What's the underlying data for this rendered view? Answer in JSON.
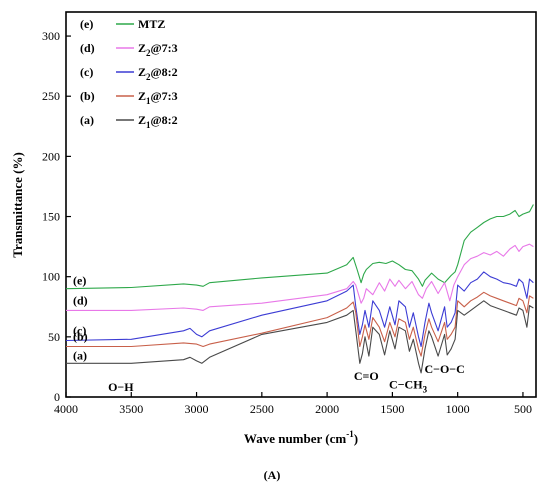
{
  "chart_data": {
    "type": "line",
    "xlabel": "Wave number (cm",
    "xlabel_sup": "-1",
    "xlabel_close": ")",
    "ylabel": "Transmittance (%)",
    "xlim": [
      4000,
      400
    ],
    "ylim": [
      0,
      320
    ],
    "x_ticks": [
      4000,
      3500,
      3000,
      2500,
      2000,
      1500,
      1000,
      500
    ],
    "y_ticks": [
      0,
      50,
      100,
      150,
      200,
      250,
      300
    ],
    "legend_placement": "top-left",
    "panel_label": "(A)",
    "series": [
      {
        "name": "MTZ",
        "tag": "(e)",
        "curve_label": "(e)",
        "color": "#2ea84a",
        "x": [
          4000,
          3500,
          3100,
          3000,
          2950,
          2900,
          2500,
          2000,
          1850,
          1800,
          1770,
          1740,
          1720,
          1700,
          1650,
          1600,
          1550,
          1500,
          1450,
          1400,
          1350,
          1300,
          1270,
          1250,
          1200,
          1150,
          1100,
          1050,
          1020,
          1000,
          950,
          900,
          850,
          800,
          750,
          700,
          650,
          600,
          560,
          530,
          500,
          450,
          420
        ],
        "y": [
          90,
          91,
          94,
          93,
          92,
          95,
          99,
          103,
          110,
          116,
          106,
          95,
          102,
          106,
          111,
          112,
          111,
          113,
          110,
          106,
          105,
          98,
          92,
          97,
          103,
          98,
          95,
          101,
          104,
          110,
          130,
          137,
          141,
          145,
          148,
          150,
          150,
          152,
          155,
          150,
          152,
          154,
          160
        ]
      },
      {
        "name": "Z",
        "sub": "2",
        "suffix": "@7:3",
        "tag": "(d)",
        "curve_label": "(d)",
        "color": "#e878e8",
        "x": [
          4000,
          3500,
          3100,
          3000,
          2950,
          2900,
          2500,
          2000,
          1850,
          1800,
          1780,
          1740,
          1720,
          1700,
          1650,
          1600,
          1560,
          1520,
          1480,
          1450,
          1400,
          1350,
          1300,
          1270,
          1240,
          1200,
          1150,
          1100,
          1060,
          1030,
          1000,
          950,
          900,
          850,
          800,
          750,
          700,
          650,
          600,
          560,
          530,
          500,
          450,
          420
        ],
        "y": [
          72,
          72,
          74,
          73,
          72,
          75,
          78,
          85,
          90,
          96,
          93,
          78,
          82,
          90,
          85,
          95,
          88,
          98,
          92,
          97,
          90,
          96,
          85,
          82,
          90,
          96,
          86,
          95,
          80,
          93,
          100,
          110,
          115,
          117,
          120,
          118,
          121,
          117,
          123,
          126,
          121,
          125,
          127,
          125
        ]
      },
      {
        "name": "Z",
        "sub": "2",
        "suffix": "@8:2",
        "tag": "(c)",
        "curve_label": "(c)",
        "color": "#3c3cd4",
        "x": [
          4000,
          3500,
          3100,
          3050,
          3000,
          2960,
          2900,
          2500,
          2000,
          1850,
          1800,
          1780,
          1750,
          1730,
          1710,
          1680,
          1650,
          1600,
          1560,
          1520,
          1480,
          1450,
          1400,
          1370,
          1340,
          1300,
          1280,
          1250,
          1220,
          1200,
          1150,
          1100,
          1080,
          1050,
          1020,
          1000,
          950,
          900,
          850,
          800,
          750,
          700,
          650,
          600,
          550,
          530,
          500,
          470,
          450,
          420
        ],
        "y": [
          47,
          48,
          55,
          57,
          52,
          50,
          55,
          68,
          80,
          88,
          93,
          75,
          52,
          60,
          72,
          58,
          80,
          72,
          58,
          75,
          60,
          80,
          75,
          58,
          70,
          50,
          42,
          62,
          78,
          70,
          55,
          75,
          58,
          62,
          70,
          93,
          88,
          95,
          98,
          104,
          100,
          98,
          95,
          94,
          92,
          98,
          95,
          82,
          98,
          95
        ]
      },
      {
        "name": "Z",
        "sub": "1",
        "suffix": "@7:3",
        "tag": "(b)",
        "curve_label": "(b)",
        "color": "#c8604a",
        "x": [
          4000,
          3500,
          3100,
          3000,
          2950,
          2900,
          2500,
          2000,
          1850,
          1800,
          1780,
          1750,
          1730,
          1710,
          1680,
          1650,
          1600,
          1560,
          1520,
          1480,
          1450,
          1400,
          1370,
          1340,
          1300,
          1280,
          1250,
          1220,
          1200,
          1150,
          1100,
          1080,
          1050,
          1020,
          1000,
          950,
          900,
          850,
          800,
          750,
          700,
          650,
          600,
          550,
          530,
          500,
          470,
          450,
          420
        ],
        "y": [
          42,
          42,
          45,
          44,
          42,
          44,
          53,
          66,
          74,
          79,
          70,
          42,
          50,
          60,
          48,
          66,
          58,
          46,
          62,
          50,
          65,
          62,
          48,
          58,
          40,
          34,
          52,
          65,
          58,
          46,
          62,
          48,
          52,
          58,
          80,
          75,
          80,
          83,
          87,
          84,
          82,
          80,
          78,
          76,
          82,
          80,
          70,
          84,
          82
        ]
      },
      {
        "name": "Z",
        "sub": "1",
        "suffix": "@8:2",
        "tag": "(a)",
        "curve_label": "(a)",
        "color": "#4a4a4a",
        "x": [
          4000,
          3500,
          3100,
          3050,
          3000,
          2960,
          2900,
          2500,
          2000,
          1850,
          1800,
          1780,
          1750,
          1730,
          1710,
          1680,
          1650,
          1600,
          1560,
          1520,
          1480,
          1450,
          1400,
          1370,
          1340,
          1300,
          1280,
          1250,
          1220,
          1200,
          1150,
          1100,
          1080,
          1050,
          1020,
          1000,
          950,
          900,
          850,
          800,
          750,
          700,
          650,
          600,
          550,
          530,
          500,
          470,
          450,
          420
        ],
        "y": [
          28,
          28,
          31,
          33,
          30,
          28,
          33,
          52,
          62,
          68,
          72,
          55,
          28,
          36,
          50,
          34,
          58,
          52,
          35,
          55,
          40,
          58,
          55,
          38,
          48,
          28,
          20,
          40,
          55,
          50,
          34,
          52,
          35,
          40,
          48,
          72,
          68,
          72,
          76,
          80,
          76,
          74,
          72,
          70,
          68,
          74,
          72,
          58,
          76,
          74
        ]
      }
    ],
    "annotations": [
      {
        "text": "O−H",
        "x": 3580,
        "y": 5
      },
      {
        "text": "C=O",
        "x": 1700,
        "y": 14
      },
      {
        "text": "C−CH",
        "sub": "3",
        "x": 1380,
        "y": 7
      },
      {
        "text": "C−O−C",
        "x": 1100,
        "y": 20
      }
    ]
  }
}
